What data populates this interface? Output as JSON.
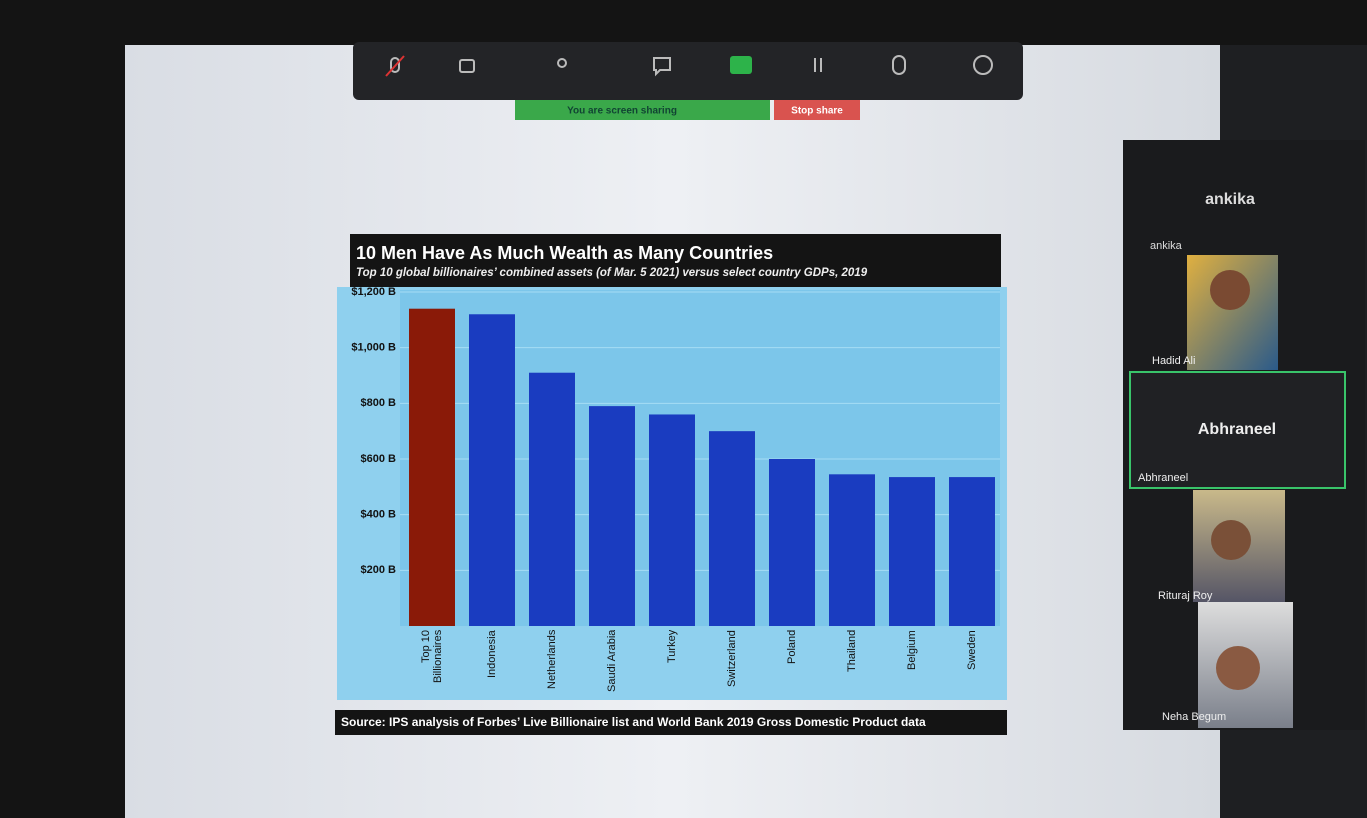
{
  "chart_data": {
    "type": "bar",
    "title": "10 Men Have As Much Wealth as Many Countries",
    "subtitle": "Top 10 global billionaires’ combined assets (of Mar. 5 2021) versus select country GDPs, 2019",
    "source": "Source: IPS analysis of Forbes’ Live Billionaire list and World Bank 2019 Gross Domestic Product data",
    "categories": [
      "Top 10 Billionaires",
      "Indonesia",
      "Netherlands",
      "Saudi Arabia",
      "Turkey",
      "Switzerland",
      "Poland",
      "Thailand",
      "Belgium",
      "Sweden"
    ],
    "values": [
      1140,
      1120,
      910,
      790,
      760,
      700,
      600,
      545,
      535,
      535
    ],
    "colors": [
      "#8a1a08",
      "#1a3cc0",
      "#1a3cc0",
      "#1a3cc0",
      "#1a3cc0",
      "#1a3cc0",
      "#1a3cc0",
      "#1a3cc0",
      "#1a3cc0",
      "#1a3cc0"
    ],
    "ylim": [
      0,
      1200
    ],
    "yticks": [
      {
        "value": 200,
        "label": "$200 B"
      },
      {
        "value": 400,
        "label": "$400 B"
      },
      {
        "value": 600,
        "label": "$600 B"
      },
      {
        "value": 800,
        "label": "$800 B"
      },
      {
        "value": 1000,
        "label": "$1,000 B"
      },
      {
        "value": 1200,
        "label": "$1,200 B"
      }
    ],
    "grid": true
  },
  "zoom": {
    "sharing_banner": "You are screen sharing",
    "stop_share": "Stop share",
    "participants": [
      {
        "name": "ankika",
        "avatar_label": "ankika"
      },
      {
        "name": "Hadid Ali"
      },
      {
        "name": "Abhraneel",
        "avatar_label": "Abhraneel"
      },
      {
        "name": "Rituraj Roy"
      },
      {
        "name": "Neha Begum"
      }
    ]
  }
}
